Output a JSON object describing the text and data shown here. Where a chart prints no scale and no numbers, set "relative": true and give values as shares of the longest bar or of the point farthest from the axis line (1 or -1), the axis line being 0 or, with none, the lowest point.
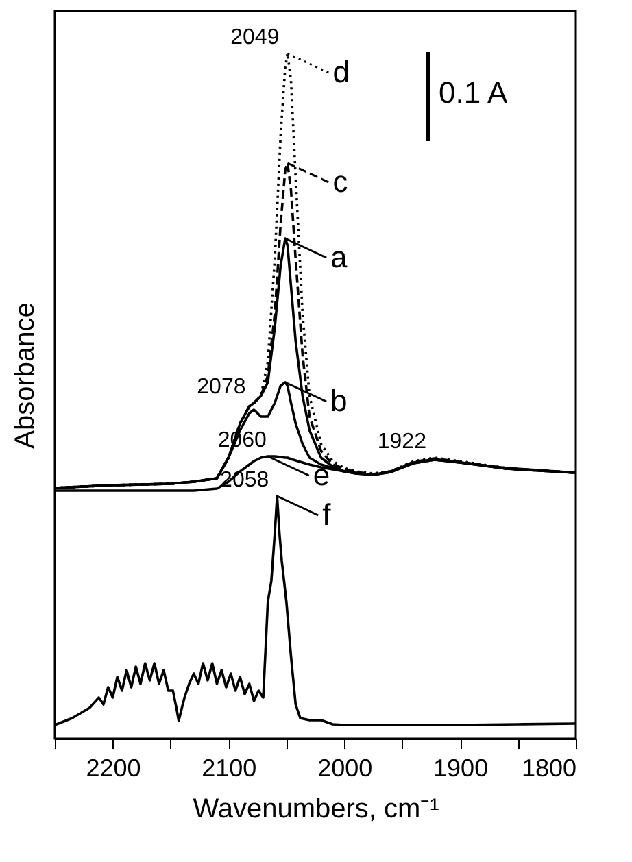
{
  "chart_data": {
    "type": "line",
    "relative": true,
    "xlabel": "Wavenumbers, cm⁻¹",
    "ylabel": "Absorbance",
    "xlim": [
      2250,
      1800
    ],
    "xticks": [
      {
        "value": 2250,
        "label": null
      },
      2200,
      {
        "value": 2150,
        "label": null
      },
      2100,
      {
        "value": 2050,
        "label": null
      },
      2000,
      {
        "value": 1950,
        "label": null
      },
      1900,
      {
        "value": 1850,
        "label": null
      },
      1800
    ],
    "x": [
      2250,
      2200,
      2150,
      2130,
      2110,
      2100,
      2090,
      2082,
      2078,
      2072,
      2066,
      2060,
      2055,
      2051,
      2049,
      2046,
      2042,
      2036,
      2030,
      2020,
      2010,
      2000,
      1990,
      1975,
      1960,
      1940,
      1922,
      1900,
      1860,
      1800
    ],
    "series": [
      {
        "name": "d",
        "color": "#000000",
        "line_style": "dotted",
        "values": [
          0.366,
          0.37,
          0.372,
          0.375,
          0.38,
          0.41,
          0.46,
          0.485,
          0.49,
          0.5,
          0.55,
          0.7,
          0.88,
          0.98,
          1.0,
          0.96,
          0.82,
          0.62,
          0.5,
          0.43,
          0.405,
          0.395,
          0.39,
          0.387,
          0.39,
          0.405,
          0.41,
          0.405,
          0.395,
          0.388
        ]
      },
      {
        "name": "c",
        "color": "#000000",
        "line_style": "dashed",
        "values": [
          0.366,
          0.37,
          0.372,
          0.375,
          0.38,
          0.41,
          0.46,
          0.485,
          0.49,
          0.5,
          0.53,
          0.62,
          0.75,
          0.83,
          0.84,
          0.8,
          0.7,
          0.56,
          0.47,
          0.42,
          0.4,
          0.394,
          0.389,
          0.386,
          0.39,
          0.404,
          0.409,
          0.404,
          0.394,
          0.388
        ]
      },
      {
        "name": "a",
        "color": "#000000",
        "line_style": "solid",
        "values": [
          0.366,
          0.37,
          0.372,
          0.375,
          0.38,
          0.41,
          0.46,
          0.485,
          0.49,
          0.5,
          0.52,
          0.6,
          0.69,
          0.73,
          0.72,
          0.66,
          0.58,
          0.5,
          0.45,
          0.41,
          0.397,
          0.39,
          0.387,
          0.385,
          0.389,
          0.403,
          0.408,
          0.403,
          0.394,
          0.388
        ]
      },
      {
        "name": "b",
        "color": "#000000",
        "line_style": "solid",
        "values": [
          0.366,
          0.37,
          0.372,
          0.375,
          0.38,
          0.41,
          0.45,
          0.475,
          0.48,
          0.47,
          0.47,
          0.49,
          0.515,
          0.52,
          0.515,
          0.49,
          0.46,
          0.43,
          0.41,
          0.4,
          0.395,
          0.39,
          0.387,
          0.385,
          0.389,
          0.402,
          0.407,
          0.403,
          0.394,
          0.388
        ]
      },
      {
        "name": "e",
        "color": "#000000",
        "line_style": "solid",
        "values": [
          0.362,
          0.362,
          0.362,
          0.362,
          0.365,
          0.375,
          0.39,
          0.4,
          0.405,
          0.41,
          0.412,
          0.412,
          0.411,
          0.41,
          0.41,
          0.408,
          0.406,
          0.403,
          0.4,
          0.396,
          0.393,
          0.39,
          0.388,
          0.385,
          0.39,
          0.402,
          0.407,
          0.403,
          0.395,
          0.388
        ]
      },
      {
        "name": "f",
        "color": "#000000",
        "line_style": "solid",
        "x": [
          2250,
          2235,
          2220,
          2212,
          2208,
          2204,
          2200,
          2196,
          2192,
          2188,
          2184,
          2180,
          2176,
          2172,
          2168,
          2164,
          2160,
          2156,
          2152,
          2148,
          2145,
          2143,
          2141,
          2138,
          2134,
          2130,
          2126,
          2122,
          2118,
          2114,
          2110,
          2106,
          2102,
          2098,
          2094,
          2090,
          2086,
          2082,
          2078,
          2074,
          2070,
          2066,
          2063,
          2060,
          2058,
          2056,
          2054,
          2050,
          2046,
          2042,
          2038,
          2030,
          2020,
          2010,
          2000,
          1950,
          1900,
          1850,
          1800
        ],
        "values": [
          0.02,
          0.03,
          0.045,
          0.06,
          0.05,
          0.075,
          0.06,
          0.09,
          0.07,
          0.1,
          0.075,
          0.105,
          0.08,
          0.11,
          0.085,
          0.11,
          0.08,
          0.1,
          0.07,
          0.07,
          0.045,
          0.026,
          0.04,
          0.06,
          0.08,
          0.095,
          0.08,
          0.11,
          0.085,
          0.11,
          0.08,
          0.1,
          0.075,
          0.095,
          0.07,
          0.09,
          0.065,
          0.08,
          0.055,
          0.07,
          0.06,
          0.2,
          0.23,
          0.3,
          0.354,
          0.3,
          0.26,
          0.2,
          0.12,
          0.05,
          0.03,
          0.027,
          0.027,
          0.021,
          0.02,
          0.02,
          0.02,
          0.021,
          0.022
        ]
      }
    ],
    "annotations": [
      {
        "text": "2049",
        "x": 2049,
        "y": 1.0
      },
      {
        "text": "2078",
        "x": 2078,
        "y": 0.49
      },
      {
        "text": "2060",
        "x": 2060,
        "y": 0.412
      },
      {
        "text": "1922",
        "x": 1922,
        "y": 0.41
      },
      {
        "text": "2058",
        "x": 2058,
        "y": 0.354
      },
      "0.1 A"
    ],
    "grid": false,
    "legend": "top"
  }
}
